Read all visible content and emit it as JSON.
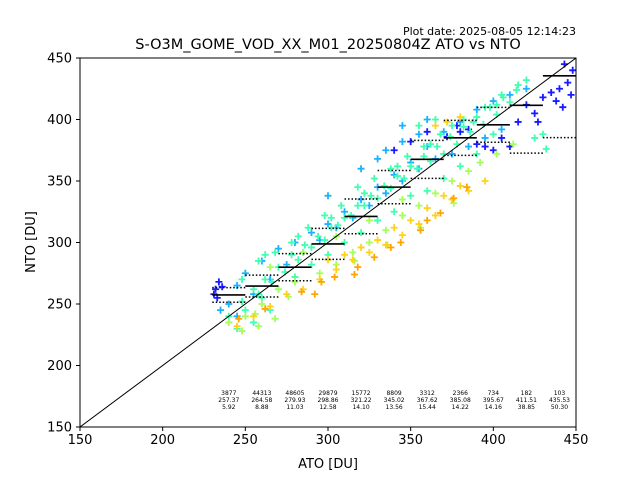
{
  "plot_date": "Plot date: 2025-08-05 12:14:23",
  "chart_data": {
    "type": "scatter",
    "title": "S-O3M_GOME_VOD_XX_M01_20250804Z ATO vs NTO",
    "xlabel": "ATO [DU]",
    "ylabel": "NTO [DU]",
    "xlim": [
      150,
      450
    ],
    "ylim": [
      150,
      450
    ],
    "xticks": [
      150,
      200,
      250,
      300,
      350,
      400,
      450
    ],
    "yticks": [
      150,
      200,
      250,
      300,
      350,
      400,
      450
    ],
    "grid": false,
    "legend": "none",
    "reference_line": {
      "x": [
        150,
        450
      ],
      "y": [
        150,
        450
      ]
    },
    "colors": {
      "dark_blue": "#1a1aff",
      "light_blue": "#1ab2ff",
      "cyan": "#33e6d9",
      "green": "#40ffb0",
      "light_green": "#a6ff59",
      "yellow": "#ffd21a",
      "orange": "#ffa500",
      "line": "#000000"
    },
    "scatter_bands": [
      {
        "color": "#1a1aff",
        "points": [
          [
            232,
            262
          ],
          [
            233,
            255
          ],
          [
            231,
            258
          ],
          [
            236,
            264
          ],
          [
            234,
            268
          ],
          [
            440,
            425
          ],
          [
            445,
            430
          ],
          [
            448,
            440
          ],
          [
            443,
            445
          ],
          [
            438,
            415
          ],
          [
            425,
            405
          ],
          [
            420,
            412
          ],
          [
            415,
            398
          ],
          [
            405,
            385
          ],
          [
            410,
            378
          ],
          [
            400,
            375
          ],
          [
            395,
            378
          ],
          [
            390,
            380
          ],
          [
            380,
            390
          ],
          [
            385,
            392
          ],
          [
            430,
            418
          ],
          [
            435,
            422
          ],
          [
            447,
            420
          ],
          [
            442,
            410
          ],
          [
            427,
            398
          ],
          [
            340,
            375
          ],
          [
            350,
            382
          ],
          [
            360,
            390
          ],
          [
            372,
            386
          ],
          [
            378,
            395
          ]
        ]
      },
      {
        "color": "#1ab2ff",
        "points": [
          [
            235,
            245
          ],
          [
            240,
            250
          ],
          [
            245,
            265
          ],
          [
            250,
            275
          ],
          [
            260,
            285
          ],
          [
            270,
            295
          ],
          [
            280,
            300
          ],
          [
            290,
            308
          ],
          [
            300,
            315
          ],
          [
            310,
            325
          ],
          [
            320,
            335
          ],
          [
            330,
            345
          ],
          [
            340,
            355
          ],
          [
            350,
            365
          ],
          [
            360,
            378
          ],
          [
            370,
            390
          ],
          [
            380,
            398
          ],
          [
            390,
            408
          ],
          [
            400,
            415
          ],
          [
            410,
            420
          ],
          [
            420,
            425
          ],
          [
            245,
            240
          ],
          [
            255,
            258
          ],
          [
            265,
            270
          ],
          [
            275,
            282
          ],
          [
            285,
            292
          ],
          [
            295,
            302
          ],
          [
            305,
            312
          ],
          [
            315,
            320
          ],
          [
            325,
            330
          ],
          [
            335,
            340
          ],
          [
            345,
            350
          ],
          [
            355,
            360
          ],
          [
            365,
            368
          ],
          [
            375,
            372
          ],
          [
            385,
            378
          ],
          [
            395,
            385
          ],
          [
            405,
            392
          ],
          [
            335,
            375
          ],
          [
            345,
            382
          ],
          [
            355,
            388
          ],
          [
            330,
            368
          ],
          [
            345,
            395
          ],
          [
            360,
            400
          ],
          [
            320,
            360
          ],
          [
            300,
            338
          ]
        ]
      },
      {
        "color": "#40ffb0",
        "points": [
          [
            240,
            240
          ],
          [
            248,
            252
          ],
          [
            255,
            262
          ],
          [
            262,
            270
          ],
          [
            270,
            280
          ],
          [
            278,
            290
          ],
          [
            286,
            298
          ],
          [
            294,
            305
          ],
          [
            302,
            312
          ],
          [
            310,
            320
          ],
          [
            318,
            330
          ],
          [
            326,
            338
          ],
          [
            334,
            346
          ],
          [
            342,
            354
          ],
          [
            350,
            362
          ],
          [
            358,
            370
          ],
          [
            366,
            378
          ],
          [
            374,
            386
          ],
          [
            382,
            394
          ],
          [
            390,
            402
          ],
          [
            398,
            410
          ],
          [
            406,
            418
          ],
          [
            414,
            424
          ],
          [
            250,
            245
          ],
          [
            258,
            258
          ],
          [
            266,
            268
          ],
          [
            274,
            276
          ],
          [
            282,
            286
          ],
          [
            290,
            296
          ],
          [
            298,
            302
          ],
          [
            306,
            314
          ],
          [
            314,
            322
          ],
          [
            322,
            330
          ],
          [
            330,
            336
          ],
          [
            338,
            344
          ],
          [
            346,
            352
          ],
          [
            354,
            360
          ],
          [
            362,
            366
          ],
          [
            370,
            372
          ],
          [
            378,
            380
          ],
          [
            386,
            390
          ],
          [
            394,
            396
          ],
          [
            402,
            404
          ],
          [
            410,
            414
          ],
          [
            260,
            255
          ],
          [
            280,
            272
          ],
          [
            300,
            290
          ],
          [
            320,
            308
          ],
          [
            340,
            325
          ],
          [
            360,
            342
          ],
          [
            380,
            362
          ],
          [
            400,
            388
          ],
          [
            262,
            290
          ],
          [
            282,
            305
          ],
          [
            302,
            320
          ],
          [
            322,
            340
          ],
          [
            342,
            362
          ],
          [
            362,
            380
          ],
          [
            382,
            400
          ],
          [
            402,
            412
          ],
          [
            420,
            432
          ],
          [
            415,
            428
          ],
          [
            270,
            262
          ],
          [
            290,
            282
          ],
          [
            310,
            300
          ],
          [
            330,
            318
          ],
          [
            350,
            338
          ],
          [
            370,
            352
          ],
          [
            390,
            372
          ],
          [
            245,
            230
          ],
          [
            255,
            235
          ],
          [
            265,
            245
          ],
          [
            248,
            270
          ],
          [
            258,
            285
          ],
          [
            268,
            292
          ],
          [
            278,
            300
          ],
          [
            288,
            312
          ],
          [
            298,
            322
          ],
          [
            308,
            330
          ],
          [
            318,
            345
          ],
          [
            328,
            352
          ],
          [
            338,
            360
          ],
          [
            348,
            370
          ],
          [
            358,
            378
          ],
          [
            368,
            388
          ],
          [
            388,
            398
          ],
          [
            425,
            385
          ],
          [
            430,
            388
          ],
          [
            432,
            376
          ],
          [
            395,
            410
          ],
          [
            405,
            420
          ],
          [
            375,
            395
          ],
          [
            355,
            395
          ],
          [
            365,
            400
          ]
        ]
      },
      {
        "color": "#a6ff59",
        "points": [
          [
            240,
            235
          ],
          [
            250,
            240
          ],
          [
            260,
            250
          ],
          [
            270,
            262
          ],
          [
            280,
            268
          ],
          [
            295,
            275
          ],
          [
            305,
            282
          ],
          [
            315,
            292
          ],
          [
            325,
            300
          ],
          [
            335,
            310
          ],
          [
            345,
            322
          ],
          [
            355,
            330
          ],
          [
            365,
            340
          ],
          [
            375,
            350
          ],
          [
            385,
            358
          ],
          [
            265,
            280
          ],
          [
            285,
            292
          ],
          [
            305,
            305
          ],
          [
            325,
            318
          ],
          [
            345,
            335
          ],
          [
            248,
            228
          ],
          [
            258,
            232
          ],
          [
            268,
            238
          ],
          [
            392,
            365
          ],
          [
            402,
            372
          ],
          [
            412,
            380
          ],
          [
            256,
            242
          ],
          [
            276,
            256
          ],
          [
            296,
            268
          ],
          [
            316,
            285
          ],
          [
            336,
            298
          ],
          [
            356,
            312
          ],
          [
            376,
            332
          ]
        ]
      },
      {
        "color": "#ffd21a",
        "points": [
          [
            245,
            232
          ],
          [
            255,
            240
          ],
          [
            265,
            248
          ],
          [
            275,
            258
          ],
          [
            285,
            262
          ],
          [
            295,
            270
          ],
          [
            305,
            278
          ],
          [
            315,
            286
          ],
          [
            325,
            292
          ],
          [
            335,
            298
          ],
          [
            345,
            306
          ],
          [
            355,
            315
          ],
          [
            365,
            322
          ],
          [
            375,
            335
          ],
          [
            385,
            342
          ],
          [
            395,
            350
          ],
          [
            365,
            395
          ],
          [
            372,
            398
          ],
          [
            380,
            402
          ],
          [
            300,
            286
          ],
          [
            310,
            290
          ],
          [
            320,
            296
          ],
          [
            330,
            302
          ],
          [
            340,
            312
          ],
          [
            350,
            318
          ],
          [
            360,
            328
          ],
          [
            370,
            338
          ],
          [
            380,
            346
          ]
        ]
      },
      {
        "color": "#ffa500",
        "points": [
          [
            246,
            238
          ],
          [
            262,
            246
          ],
          [
            284,
            260
          ],
          [
            296,
            268
          ],
          [
            304,
            272
          ],
          [
            318,
            280
          ],
          [
            328,
            288
          ],
          [
            338,
            296
          ],
          [
            356,
            310
          ],
          [
            368,
            324
          ],
          [
            376,
            336
          ],
          [
            384,
            345
          ],
          [
            292,
            258
          ],
          [
            316,
            274
          ],
          [
            344,
            300
          ],
          [
            360,
            318
          ]
        ]
      }
    ],
    "bins": [
      {
        "count": 3877,
        "mean": 257.37,
        "std": 5.92,
        "x_from": 230,
        "x_to": 250
      },
      {
        "count": 44313,
        "mean": 264.58,
        "std": 8.88,
        "x_from": 250,
        "x_to": 270
      },
      {
        "count": 48605,
        "mean": 279.93,
        "std": 11.03,
        "x_from": 270,
        "x_to": 290
      },
      {
        "count": 29879,
        "mean": 298.86,
        "std": 12.58,
        "x_from": 290,
        "x_to": 310
      },
      {
        "count": 15772,
        "mean": 321.22,
        "std": 14.1,
        "x_from": 310,
        "x_to": 330
      },
      {
        "count": 8809,
        "mean": 345.02,
        "std": 13.56,
        "x_from": 330,
        "x_to": 350
      },
      {
        "count": 3312,
        "mean": 367.62,
        "std": 15.44,
        "x_from": 350,
        "x_to": 370
      },
      {
        "count": 2366,
        "mean": 385.08,
        "std": 14.22,
        "x_from": 370,
        "x_to": 390
      },
      {
        "count": 734,
        "mean": 395.67,
        "std": 14.16,
        "x_from": 390,
        "x_to": 410
      },
      {
        "count": 182,
        "mean": 411.51,
        "std": 38.85,
        "x_from": 410,
        "x_to": 430
      },
      {
        "count": 103,
        "mean": 435.53,
        "std": 50.3,
        "x_from": 430,
        "x_to": 450
      }
    ]
  }
}
